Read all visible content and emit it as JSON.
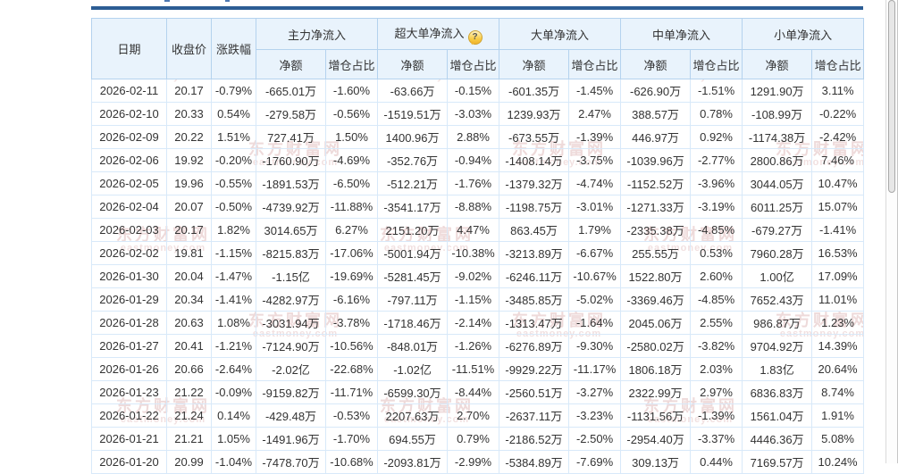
{
  "colors": {
    "up": "#ff0000",
    "down": "#009900",
    "top_bar": "#2c5d94"
  },
  "icons": {
    "help": "?"
  },
  "watermark": {
    "cn": "东方财富网",
    "en": "eastmoney.com"
  },
  "table": {
    "col_headers": {
      "date": "日期",
      "close": "收盘价",
      "change": "涨跌幅",
      "amount": "净额",
      "ratio": "增仓占比"
    },
    "groups": [
      {
        "label": "主力净流入"
      },
      {
        "label": "超大单净流入"
      },
      {
        "label": "大单净流入"
      },
      {
        "label": "中单净流入"
      },
      {
        "label": "小单净流入"
      }
    ],
    "rows": [
      {
        "date": "2026-02-11",
        "cells": [
          {
            "t": "20.17",
            "d": "down"
          },
          {
            "t": "-0.79%",
            "d": "down"
          },
          {
            "t": "-665.01万",
            "d": "down"
          },
          {
            "t": "-1.60%",
            "d": "down"
          },
          {
            "t": "-63.66万",
            "d": "down"
          },
          {
            "t": "-0.15%",
            "d": "down"
          },
          {
            "t": "-601.35万",
            "d": "down"
          },
          {
            "t": "-1.45%",
            "d": "down"
          },
          {
            "t": "-626.90万",
            "d": "down"
          },
          {
            "t": "-1.51%",
            "d": "down"
          },
          {
            "t": "1291.90万",
            "d": "up"
          },
          {
            "t": "3.11%",
            "d": "up"
          }
        ]
      },
      {
        "date": "2026-02-10",
        "cells": [
          {
            "t": "20.33",
            "d": "up"
          },
          {
            "t": "0.54%",
            "d": "up"
          },
          {
            "t": "-279.58万",
            "d": "down"
          },
          {
            "t": "-0.56%",
            "d": "down"
          },
          {
            "t": "-1519.51万",
            "d": "down"
          },
          {
            "t": "-3.03%",
            "d": "down"
          },
          {
            "t": "1239.93万",
            "d": "up"
          },
          {
            "t": "2.47%",
            "d": "up"
          },
          {
            "t": "388.57万",
            "d": "up"
          },
          {
            "t": "0.78%",
            "d": "up"
          },
          {
            "t": "-108.99万",
            "d": "down"
          },
          {
            "t": "-0.22%",
            "d": "down"
          }
        ]
      },
      {
        "date": "2026-02-09",
        "cells": [
          {
            "t": "20.22",
            "d": "up"
          },
          {
            "t": "1.51%",
            "d": "up"
          },
          {
            "t": "727.41万",
            "d": "up"
          },
          {
            "t": "1.50%",
            "d": "up"
          },
          {
            "t": "1400.96万",
            "d": "up"
          },
          {
            "t": "2.88%",
            "d": "up"
          },
          {
            "t": "-673.55万",
            "d": "down"
          },
          {
            "t": "-1.39%",
            "d": "down"
          },
          {
            "t": "446.97万",
            "d": "up"
          },
          {
            "t": "0.92%",
            "d": "up"
          },
          {
            "t": "-1174.38万",
            "d": "down"
          },
          {
            "t": "-2.42%",
            "d": "down"
          }
        ]
      },
      {
        "date": "2026-02-06",
        "cells": [
          {
            "t": "19.92",
            "d": "down"
          },
          {
            "t": "-0.20%",
            "d": "down"
          },
          {
            "t": "-1760.90万",
            "d": "down"
          },
          {
            "t": "-4.69%",
            "d": "down"
          },
          {
            "t": "-352.76万",
            "d": "down"
          },
          {
            "t": "-0.94%",
            "d": "down"
          },
          {
            "t": "-1408.14万",
            "d": "down"
          },
          {
            "t": "-3.75%",
            "d": "down"
          },
          {
            "t": "-1039.96万",
            "d": "down"
          },
          {
            "t": "-2.77%",
            "d": "down"
          },
          {
            "t": "2800.86万",
            "d": "up"
          },
          {
            "t": "7.46%",
            "d": "up"
          }
        ]
      },
      {
        "date": "2026-02-05",
        "cells": [
          {
            "t": "19.96",
            "d": "down"
          },
          {
            "t": "-0.55%",
            "d": "down"
          },
          {
            "t": "-1891.53万",
            "d": "down"
          },
          {
            "t": "-6.50%",
            "d": "down"
          },
          {
            "t": "-512.21万",
            "d": "down"
          },
          {
            "t": "-1.76%",
            "d": "down"
          },
          {
            "t": "-1379.32万",
            "d": "down"
          },
          {
            "t": "-4.74%",
            "d": "down"
          },
          {
            "t": "-1152.52万",
            "d": "down"
          },
          {
            "t": "-3.96%",
            "d": "down"
          },
          {
            "t": "3044.05万",
            "d": "up"
          },
          {
            "t": "10.47%",
            "d": "up"
          }
        ]
      },
      {
        "date": "2026-02-04",
        "cells": [
          {
            "t": "20.07",
            "d": "down"
          },
          {
            "t": "-0.50%",
            "d": "down"
          },
          {
            "t": "-4739.92万",
            "d": "down"
          },
          {
            "t": "-11.88%",
            "d": "down"
          },
          {
            "t": "-3541.17万",
            "d": "down"
          },
          {
            "t": "-8.88%",
            "d": "down"
          },
          {
            "t": "-1198.75万",
            "d": "down"
          },
          {
            "t": "-3.01%",
            "d": "down"
          },
          {
            "t": "-1271.33万",
            "d": "down"
          },
          {
            "t": "-3.19%",
            "d": "down"
          },
          {
            "t": "6011.25万",
            "d": "up"
          },
          {
            "t": "15.07%",
            "d": "up"
          }
        ]
      },
      {
        "date": "2026-02-03",
        "cells": [
          {
            "t": "20.17",
            "d": "up"
          },
          {
            "t": "1.82%",
            "d": "up"
          },
          {
            "t": "3014.65万",
            "d": "up"
          },
          {
            "t": "6.27%",
            "d": "up"
          },
          {
            "t": "2151.20万",
            "d": "up"
          },
          {
            "t": "4.47%",
            "d": "up"
          },
          {
            "t": "863.45万",
            "d": "up"
          },
          {
            "t": "1.79%",
            "d": "up"
          },
          {
            "t": "-2335.38万",
            "d": "down"
          },
          {
            "t": "-4.85%",
            "d": "down"
          },
          {
            "t": "-679.27万",
            "d": "down"
          },
          {
            "t": "-1.41%",
            "d": "down"
          }
        ]
      },
      {
        "date": "2026-02-02",
        "cells": [
          {
            "t": "19.81",
            "d": "down"
          },
          {
            "t": "-1.15%",
            "d": "down"
          },
          {
            "t": "-8215.83万",
            "d": "down"
          },
          {
            "t": "-17.06%",
            "d": "down"
          },
          {
            "t": "-5001.94万",
            "d": "down"
          },
          {
            "t": "-10.38%",
            "d": "down"
          },
          {
            "t": "-3213.89万",
            "d": "down"
          },
          {
            "t": "-6.67%",
            "d": "down"
          },
          {
            "t": "255.55万",
            "d": "up"
          },
          {
            "t": "0.53%",
            "d": "up"
          },
          {
            "t": "7960.28万",
            "d": "up"
          },
          {
            "t": "16.53%",
            "d": "up"
          }
        ]
      },
      {
        "date": "2026-01-30",
        "cells": [
          {
            "t": "20.04",
            "d": "down"
          },
          {
            "t": "-1.47%",
            "d": "down"
          },
          {
            "t": "-1.15亿",
            "d": "down"
          },
          {
            "t": "-19.69%",
            "d": "down"
          },
          {
            "t": "-5281.45万",
            "d": "down"
          },
          {
            "t": "-9.02%",
            "d": "down"
          },
          {
            "t": "-6246.11万",
            "d": "down"
          },
          {
            "t": "-10.67%",
            "d": "down"
          },
          {
            "t": "1522.80万",
            "d": "up"
          },
          {
            "t": "2.60%",
            "d": "up"
          },
          {
            "t": "1.00亿",
            "d": "up"
          },
          {
            "t": "17.09%",
            "d": "up"
          }
        ]
      },
      {
        "date": "2026-01-29",
        "cells": [
          {
            "t": "20.34",
            "d": "down"
          },
          {
            "t": "-1.41%",
            "d": "down"
          },
          {
            "t": "-4282.97万",
            "d": "down"
          },
          {
            "t": "-6.16%",
            "d": "down"
          },
          {
            "t": "-797.11万",
            "d": "down"
          },
          {
            "t": "-1.15%",
            "d": "down"
          },
          {
            "t": "-3485.85万",
            "d": "down"
          },
          {
            "t": "-5.02%",
            "d": "down"
          },
          {
            "t": "-3369.46万",
            "d": "down"
          },
          {
            "t": "-4.85%",
            "d": "down"
          },
          {
            "t": "7652.43万",
            "d": "up"
          },
          {
            "t": "11.01%",
            "d": "up"
          }
        ]
      },
      {
        "date": "2026-01-28",
        "cells": [
          {
            "t": "20.63",
            "d": "up"
          },
          {
            "t": "1.08%",
            "d": "up"
          },
          {
            "t": "-3031.94万",
            "d": "down"
          },
          {
            "t": "-3.78%",
            "d": "down"
          },
          {
            "t": "-1718.46万",
            "d": "down"
          },
          {
            "t": "-2.14%",
            "d": "down"
          },
          {
            "t": "-1313.47万",
            "d": "down"
          },
          {
            "t": "-1.64%",
            "d": "down"
          },
          {
            "t": "2045.06万",
            "d": "up"
          },
          {
            "t": "2.55%",
            "d": "up"
          },
          {
            "t": "986.87万",
            "d": "up"
          },
          {
            "t": "1.23%",
            "d": "up"
          }
        ]
      },
      {
        "date": "2026-01-27",
        "cells": [
          {
            "t": "20.41",
            "d": "down"
          },
          {
            "t": "-1.21%",
            "d": "down"
          },
          {
            "t": "-7124.90万",
            "d": "down"
          },
          {
            "t": "-10.56%",
            "d": "down"
          },
          {
            "t": "-848.01万",
            "d": "down"
          },
          {
            "t": "-1.26%",
            "d": "down"
          },
          {
            "t": "-6276.89万",
            "d": "down"
          },
          {
            "t": "-9.30%",
            "d": "down"
          },
          {
            "t": "-2580.02万",
            "d": "down"
          },
          {
            "t": "-3.82%",
            "d": "down"
          },
          {
            "t": "9704.92万",
            "d": "up"
          },
          {
            "t": "14.39%",
            "d": "up"
          }
        ]
      },
      {
        "date": "2026-01-26",
        "cells": [
          {
            "t": "20.66",
            "d": "down"
          },
          {
            "t": "-2.64%",
            "d": "down"
          },
          {
            "t": "-2.02亿",
            "d": "down"
          },
          {
            "t": "-22.68%",
            "d": "down"
          },
          {
            "t": "-1.02亿",
            "d": "down"
          },
          {
            "t": "-11.51%",
            "d": "down"
          },
          {
            "t": "-9929.22万",
            "d": "down"
          },
          {
            "t": "-11.17%",
            "d": "down"
          },
          {
            "t": "1806.18万",
            "d": "up"
          },
          {
            "t": "2.03%",
            "d": "up"
          },
          {
            "t": "1.83亿",
            "d": "up"
          },
          {
            "t": "20.64%",
            "d": "up"
          }
        ]
      },
      {
        "date": "2026-01-23",
        "cells": [
          {
            "t": "21.22",
            "d": "down"
          },
          {
            "t": "-0.09%",
            "d": "down"
          },
          {
            "t": "-9159.82万",
            "d": "down"
          },
          {
            "t": "-11.71%",
            "d": "down"
          },
          {
            "t": "-6599.30万",
            "d": "down"
          },
          {
            "t": "-8.44%",
            "d": "down"
          },
          {
            "t": "-2560.51万",
            "d": "down"
          },
          {
            "t": "-3.27%",
            "d": "down"
          },
          {
            "t": "2322.99万",
            "d": "up"
          },
          {
            "t": "2.97%",
            "d": "up"
          },
          {
            "t": "6836.83万",
            "d": "up"
          },
          {
            "t": "8.74%",
            "d": "up"
          }
        ]
      },
      {
        "date": "2026-01-22",
        "cells": [
          {
            "t": "21.24",
            "d": "up"
          },
          {
            "t": "0.14%",
            "d": "up"
          },
          {
            "t": "-429.48万",
            "d": "down"
          },
          {
            "t": "-0.53%",
            "d": "down"
          },
          {
            "t": "2207.63万",
            "d": "up"
          },
          {
            "t": "2.70%",
            "d": "up"
          },
          {
            "t": "-2637.11万",
            "d": "down"
          },
          {
            "t": "-3.23%",
            "d": "down"
          },
          {
            "t": "-1131.56万",
            "d": "down"
          },
          {
            "t": "-1.39%",
            "d": "down"
          },
          {
            "t": "1561.04万",
            "d": "up"
          },
          {
            "t": "1.91%",
            "d": "up"
          }
        ]
      },
      {
        "date": "2026-01-21",
        "cells": [
          {
            "t": "21.21",
            "d": "up"
          },
          {
            "t": "1.05%",
            "d": "up"
          },
          {
            "t": "-1491.96万",
            "d": "down"
          },
          {
            "t": "-1.70%",
            "d": "down"
          },
          {
            "t": "694.55万",
            "d": "up"
          },
          {
            "t": "0.79%",
            "d": "up"
          },
          {
            "t": "-2186.52万",
            "d": "down"
          },
          {
            "t": "-2.50%",
            "d": "down"
          },
          {
            "t": "-2954.40万",
            "d": "down"
          },
          {
            "t": "-3.37%",
            "d": "down"
          },
          {
            "t": "4446.36万",
            "d": "up"
          },
          {
            "t": "5.08%",
            "d": "up"
          }
        ]
      },
      {
        "date": "2026-01-20",
        "cells": [
          {
            "t": "20.99",
            "d": "down"
          },
          {
            "t": "-1.04%",
            "d": "down"
          },
          {
            "t": "-7478.70万",
            "d": "down"
          },
          {
            "t": "-10.68%",
            "d": "down"
          },
          {
            "t": "-2093.81万",
            "d": "down"
          },
          {
            "t": "-2.99%",
            "d": "down"
          },
          {
            "t": "-5384.89万",
            "d": "down"
          },
          {
            "t": "-7.69%",
            "d": "down"
          },
          {
            "t": "309.13万",
            "d": "up"
          },
          {
            "t": "0.44%",
            "d": "up"
          },
          {
            "t": "7169.57万",
            "d": "up"
          },
          {
            "t": "10.24%",
            "d": "up"
          }
        ]
      }
    ]
  }
}
